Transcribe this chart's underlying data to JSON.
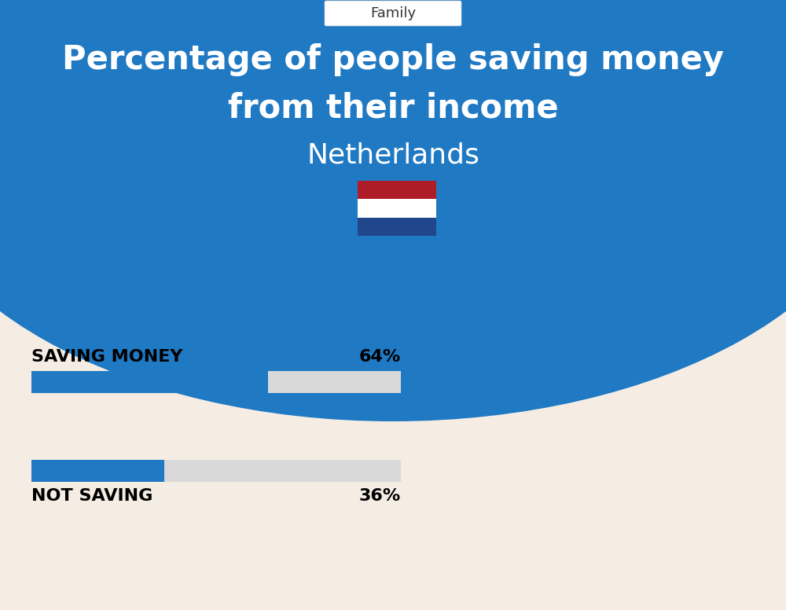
{
  "title_line1": "Percentage of people saving money",
  "title_line2": "from their income",
  "subtitle": "Netherlands",
  "tab_label": "Family",
  "background_color": "#f5ede3",
  "blue_bg_color": "#2079c3",
  "bar_blue": "#2079c3",
  "bar_gray": "#d9d9d9",
  "saving_label": "SAVING MONEY",
  "saving_value": 64,
  "saving_pct_text": "64%",
  "not_saving_label": "NOT SAVING",
  "not_saving_value": 36,
  "not_saving_pct_text": "36%",
  "label_fontsize": 16,
  "pct_fontsize": 16,
  "title_fontsize": 30,
  "subtitle_fontsize": 26,
  "tab_fontsize": 13,
  "flag_red": "#AE1C28",
  "flag_white": "#FFFFFF",
  "flag_blue": "#21468B"
}
